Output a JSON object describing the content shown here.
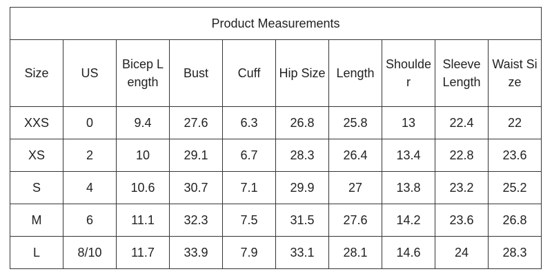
{
  "table": {
    "title": "Product Measurements",
    "headers": [
      "Size",
      "US",
      "Bicep Length",
      "Bust",
      "Cuff",
      "Hip Size",
      "Length",
      "Shoulder",
      "Sleeve Length",
      "Waist Size"
    ],
    "rows": [
      [
        "XXS",
        0,
        9.4,
        27.6,
        6.3,
        26.8,
        25.8,
        13,
        22.4,
        22
      ],
      [
        "XS",
        2,
        10,
        29.1,
        6.7,
        28.3,
        26.4,
        13.4,
        22.8,
        23.6
      ],
      [
        "S",
        4,
        10.6,
        30.7,
        7.1,
        29.9,
        27,
        13.8,
        23.2,
        25.2
      ],
      [
        "M",
        6,
        11.1,
        32.3,
        7.5,
        31.5,
        27.6,
        14.2,
        23.6,
        26.8
      ],
      [
        "L",
        "8/10",
        11.7,
        33.9,
        7.9,
        33.1,
        28.1,
        14.6,
        24,
        28.3
      ]
    ]
  }
}
